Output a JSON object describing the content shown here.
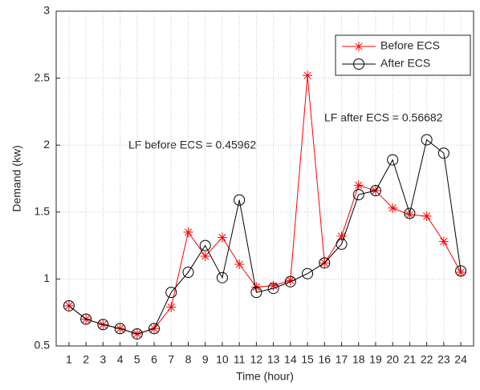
{
  "chart_data": {
    "type": "line",
    "x": [
      1,
      2,
      3,
      4,
      5,
      6,
      7,
      8,
      9,
      10,
      11,
      12,
      13,
      14,
      15,
      16,
      17,
      18,
      19,
      20,
      21,
      22,
      23,
      24
    ],
    "series": [
      {
        "name": "Before ECS",
        "color": "#ff0000",
        "marker": "asterisk",
        "values": [
          0.8,
          0.7,
          0.66,
          0.63,
          0.59,
          0.63,
          0.79,
          1.35,
          1.17,
          1.31,
          1.11,
          0.94,
          0.95,
          0.99,
          2.52,
          1.12,
          1.32,
          1.7,
          1.66,
          1.53,
          1.48,
          1.47,
          1.28,
          1.05
        ]
      },
      {
        "name": "After ECS",
        "color": "#000000",
        "marker": "circle",
        "values": [
          0.8,
          0.7,
          0.66,
          0.63,
          0.59,
          0.63,
          0.9,
          1.05,
          1.25,
          1.01,
          1.59,
          0.9,
          0.93,
          0.98,
          1.04,
          1.12,
          1.26,
          1.63,
          1.66,
          1.89,
          1.49,
          2.04,
          1.94,
          1.06
        ]
      }
    ],
    "xlabel": "Time (hour)",
    "ylabel": "Demand (kw)",
    "xlim": [
      0.25,
      24.75
    ],
    "xticks": [
      1,
      2,
      3,
      4,
      5,
      6,
      7,
      8,
      9,
      10,
      11,
      12,
      13,
      14,
      15,
      16,
      17,
      18,
      19,
      20,
      21,
      22,
      23,
      24
    ],
    "ylim": [
      0.5,
      3
    ],
    "yticks": [
      0.5,
      1,
      1.5,
      2,
      2.5,
      3
    ],
    "grid": true,
    "legend": "northeast",
    "annotations": [
      {
        "text": "LF before ECS = 0.45962",
        "color": "#ff0000"
      },
      {
        "text": "LF after ECS = 0.56682",
        "color": "#000000"
      }
    ]
  }
}
